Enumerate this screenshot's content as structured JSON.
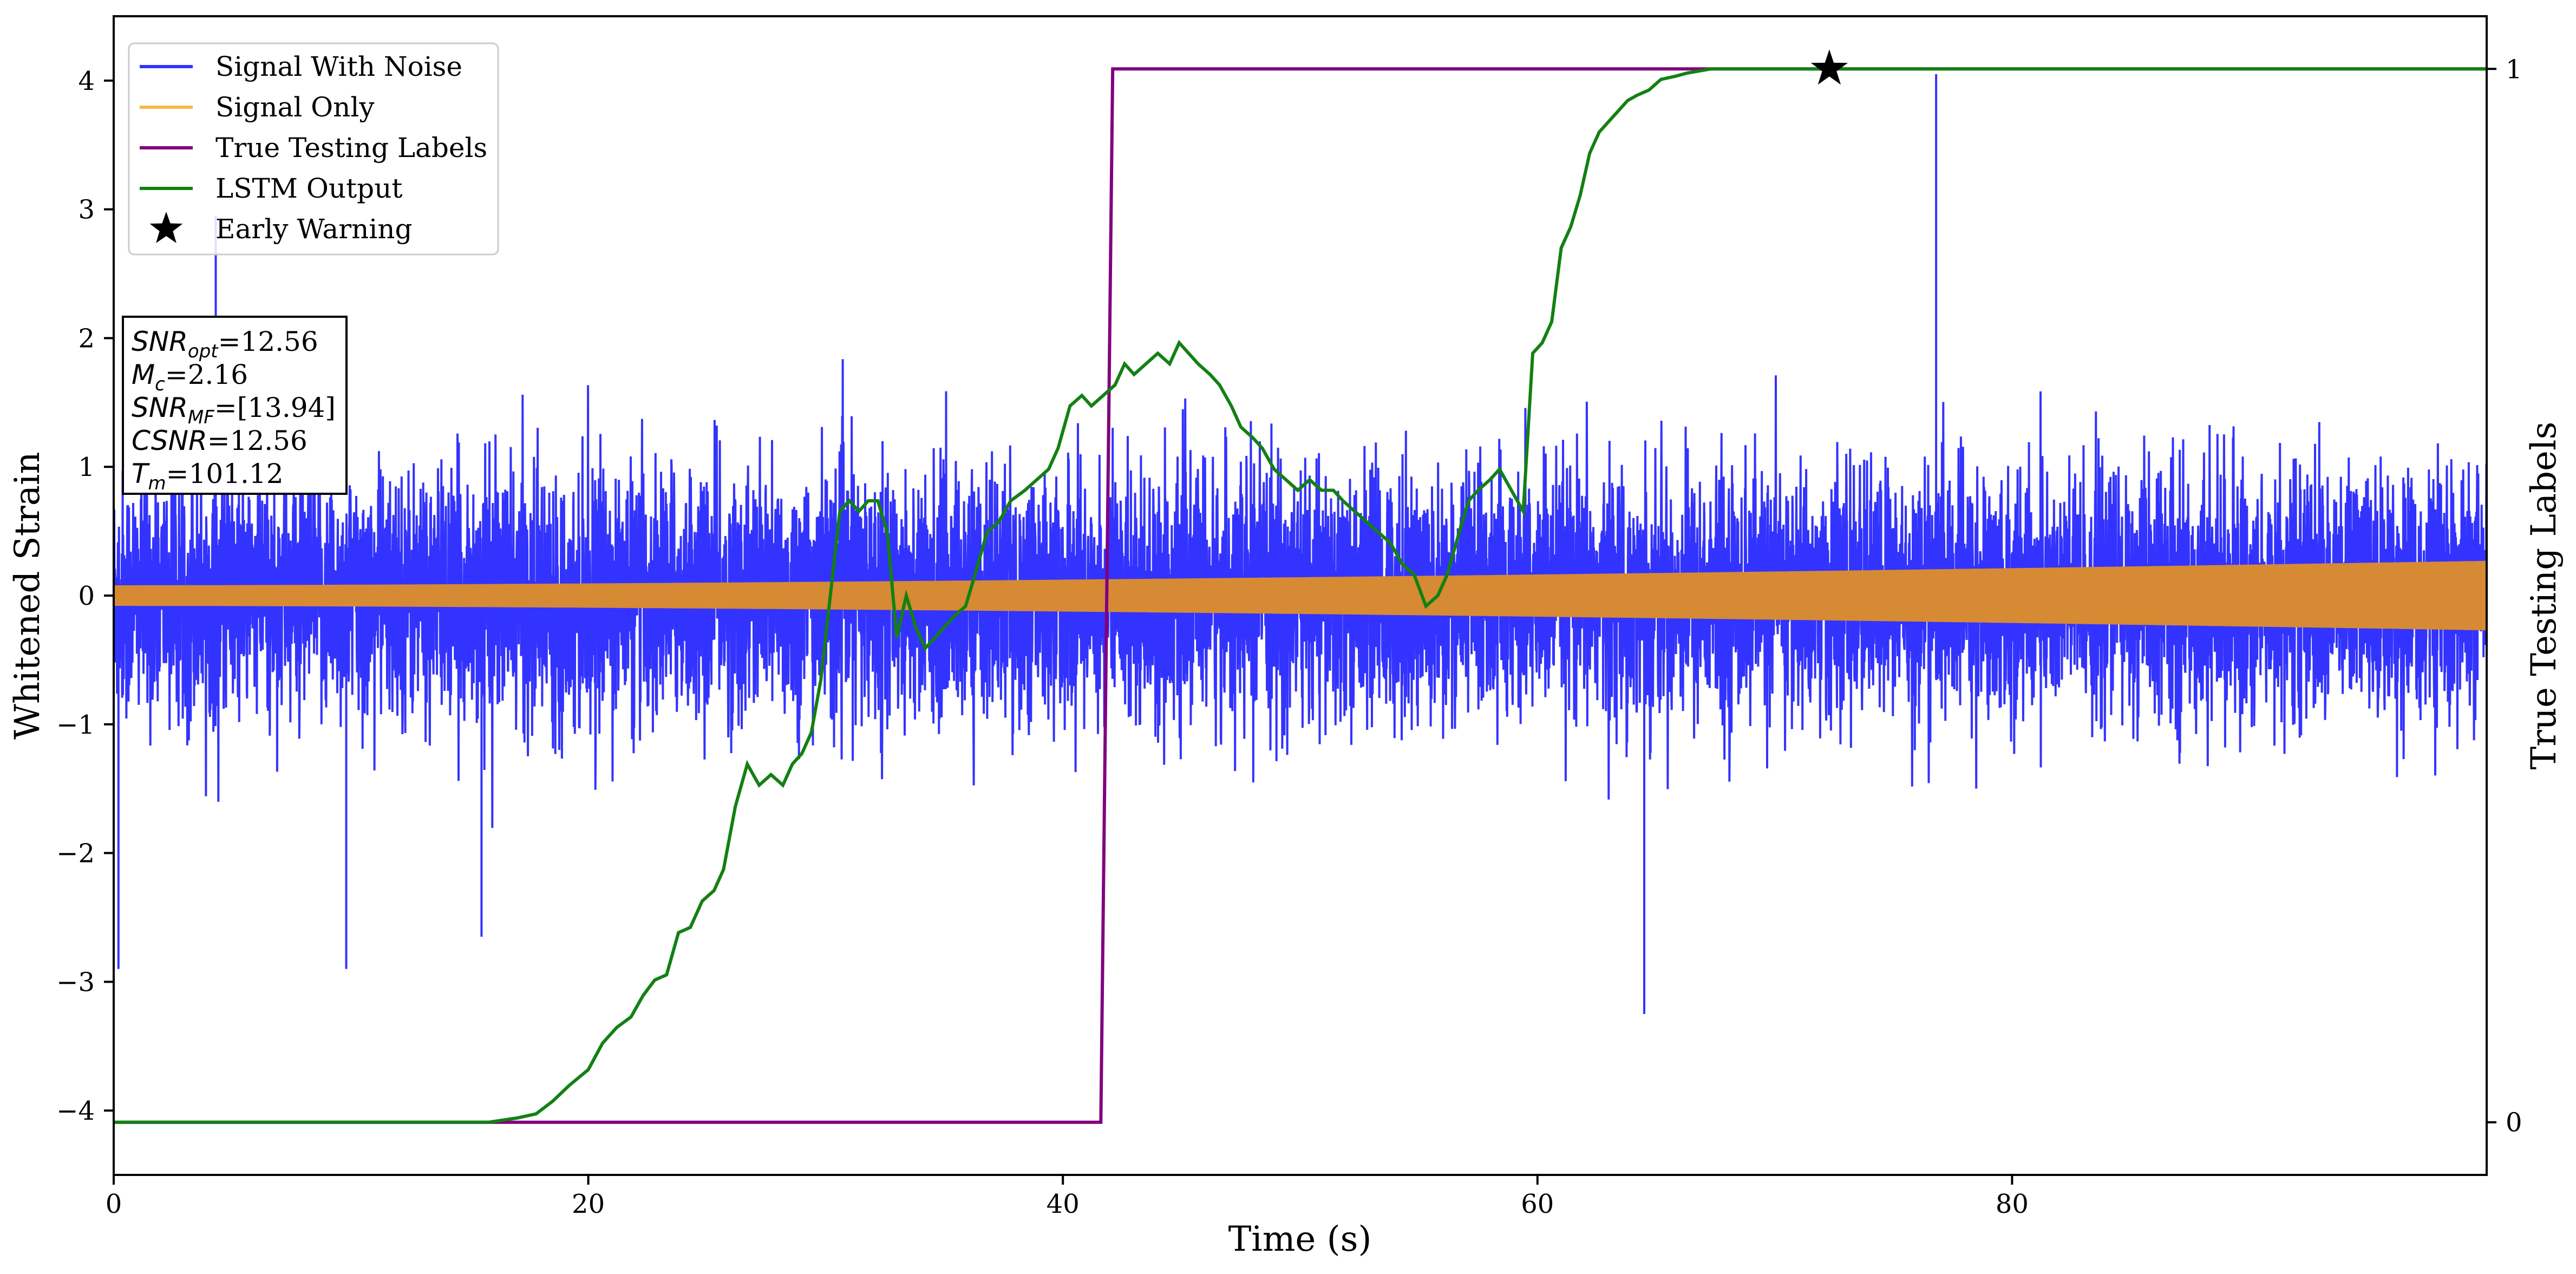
{
  "chart_data": {
    "type": "line",
    "xlabel": "Time (s)",
    "ylabel": "Whitened Strain",
    "y2label": "True Testing Labels",
    "xlim": [
      0,
      100
    ],
    "ylim": [
      -4.5,
      4.5
    ],
    "y2lim": [
      -0.05,
      1.05
    ],
    "xticks": [
      0,
      20,
      40,
      60,
      80
    ],
    "yticks": [
      -4,
      -3,
      -2,
      -1,
      0,
      1,
      2,
      3,
      4
    ],
    "y2ticks": [
      0,
      1
    ],
    "legend_position": "upper-left",
    "legend": [
      {
        "name": "Signal With Noise",
        "color": "#3333ff",
        "marker": "line"
      },
      {
        "name": "Signal Only",
        "color": "#f5b942",
        "marker": "line"
      },
      {
        "name": "True Testing Labels",
        "color": "#800080",
        "marker": "line"
      },
      {
        "name": "LSTM Output",
        "color": "#138013",
        "marker": "line"
      },
      {
        "name": "Early Warning",
        "color": "#000000",
        "marker": "star"
      }
    ],
    "series": [
      {
        "name": "Signal With Noise",
        "axis": "left",
        "color": "#3333ff",
        "kind": "noise",
        "sigma": 0.48,
        "envelope": [
          1.5,
          2.2
        ],
        "spikes": [
          {
            "x": 4.3,
            "y": 2.95
          },
          {
            "x": 0.2,
            "y": -2.9
          },
          {
            "x": 9.8,
            "y": -2.9
          },
          {
            "x": 15.5,
            "y": -2.65
          },
          {
            "x": 64.5,
            "y": -3.25
          },
          {
            "x": 76.8,
            "y": 4.05
          }
        ]
      },
      {
        "name": "Signal Only",
        "axis": "left",
        "color": "#d68a33",
        "kind": "envelope",
        "amplitude_start": 0.08,
        "amplitude_end": 0.27
      },
      {
        "name": "True Testing Labels",
        "axis": "right",
        "color": "#800080",
        "x": [
          0,
          41.6,
          41.6,
          42.1,
          100
        ],
        "y": [
          0,
          0,
          0,
          1,
          1
        ]
      },
      {
        "name": "LSTM Output",
        "axis": "right",
        "color": "#138013",
        "x": [
          0,
          15.8,
          17.0,
          17.8,
          18.5,
          19.2,
          20.0,
          20.6,
          21.2,
          21.8,
          22.3,
          22.8,
          23.3,
          23.8,
          24.3,
          24.8,
          25.3,
          25.7,
          26.2,
          26.7,
          27.2,
          27.7,
          28.2,
          28.6,
          29.0,
          29.4,
          29.8,
          30.2,
          30.6,
          31.0,
          31.4,
          31.8,
          32.2,
          32.6,
          33.0,
          33.4,
          33.8,
          34.2,
          34.6,
          35.0,
          35.4,
          35.9,
          36.3,
          36.8,
          37.3,
          37.8,
          38.4,
          38.9,
          39.4,
          39.8,
          40.3,
          40.8,
          41.2,
          41.7,
          42.2,
          42.6,
          43.0,
          43.5,
          44.0,
          44.5,
          44.9,
          45.3,
          45.7,
          46.2,
          46.6,
          47.1,
          47.5,
          48.0,
          48.4,
          48.9,
          49.4,
          49.9,
          50.4,
          50.9,
          51.4,
          51.8,
          52.3,
          52.8,
          53.3,
          53.8,
          54.3,
          54.8,
          55.3,
          55.8,
          56.2,
          56.7,
          57.1,
          57.5,
          58.0,
          58.4,
          58.9,
          59.4,
          59.8,
          60.2,
          60.6,
          61.0,
          61.4,
          61.8,
          62.2,
          62.6,
          63.0,
          63.4,
          63.8,
          64.2,
          64.7,
          65.2,
          65.8,
          66.3,
          66.8,
          67.3,
          68.0,
          69.0,
          70.0,
          71.0,
          72.0,
          72.5,
          74.0,
          76.0,
          80.0,
          100
        ],
        "y": [
          0,
          0,
          0.004,
          0.008,
          0.02,
          0.035,
          0.05,
          0.075,
          0.09,
          0.1,
          0.12,
          0.135,
          0.14,
          0.18,
          0.185,
          0.21,
          0.22,
          0.24,
          0.3,
          0.34,
          0.32,
          0.33,
          0.32,
          0.34,
          0.35,
          0.37,
          0.42,
          0.5,
          0.58,
          0.59,
          0.58,
          0.59,
          0.59,
          0.56,
          0.46,
          0.5,
          0.47,
          0.45,
          0.46,
          0.47,
          0.48,
          0.49,
          0.52,
          0.56,
          0.57,
          0.59,
          0.6,
          0.61,
          0.62,
          0.64,
          0.68,
          0.69,
          0.68,
          0.69,
          0.7,
          0.72,
          0.71,
          0.72,
          0.73,
          0.72,
          0.74,
          0.73,
          0.72,
          0.71,
          0.7,
          0.68,
          0.66,
          0.65,
          0.64,
          0.62,
          0.61,
          0.6,
          0.61,
          0.6,
          0.6,
          0.59,
          0.58,
          0.57,
          0.56,
          0.55,
          0.53,
          0.52,
          0.49,
          0.5,
          0.52,
          0.56,
          0.59,
          0.6,
          0.61,
          0.62,
          0.6,
          0.58,
          0.73,
          0.74,
          0.76,
          0.83,
          0.85,
          0.88,
          0.92,
          0.94,
          0.95,
          0.96,
          0.97,
          0.975,
          0.98,
          0.99,
          0.993,
          0.996,
          0.998,
          1,
          1,
          1,
          1,
          1,
          1,
          1,
          1,
          1,
          1,
          1
        ]
      }
    ],
    "early_warning": {
      "x": 72.3,
      "y": 1.0,
      "axis": "right"
    },
    "annotation": [
      {
        "base": "SNR",
        "sub": "opt",
        "text": "=12.56"
      },
      {
        "base": "M",
        "sub": "c",
        "text": "=2.16"
      },
      {
        "base": "SNR",
        "sub": "MF",
        "text": "=[13.94]"
      },
      {
        "base": "CSNR",
        "sub": "",
        "text": "=12.56"
      },
      {
        "base": "T",
        "sub": "m",
        "text": "=101.12"
      }
    ]
  }
}
